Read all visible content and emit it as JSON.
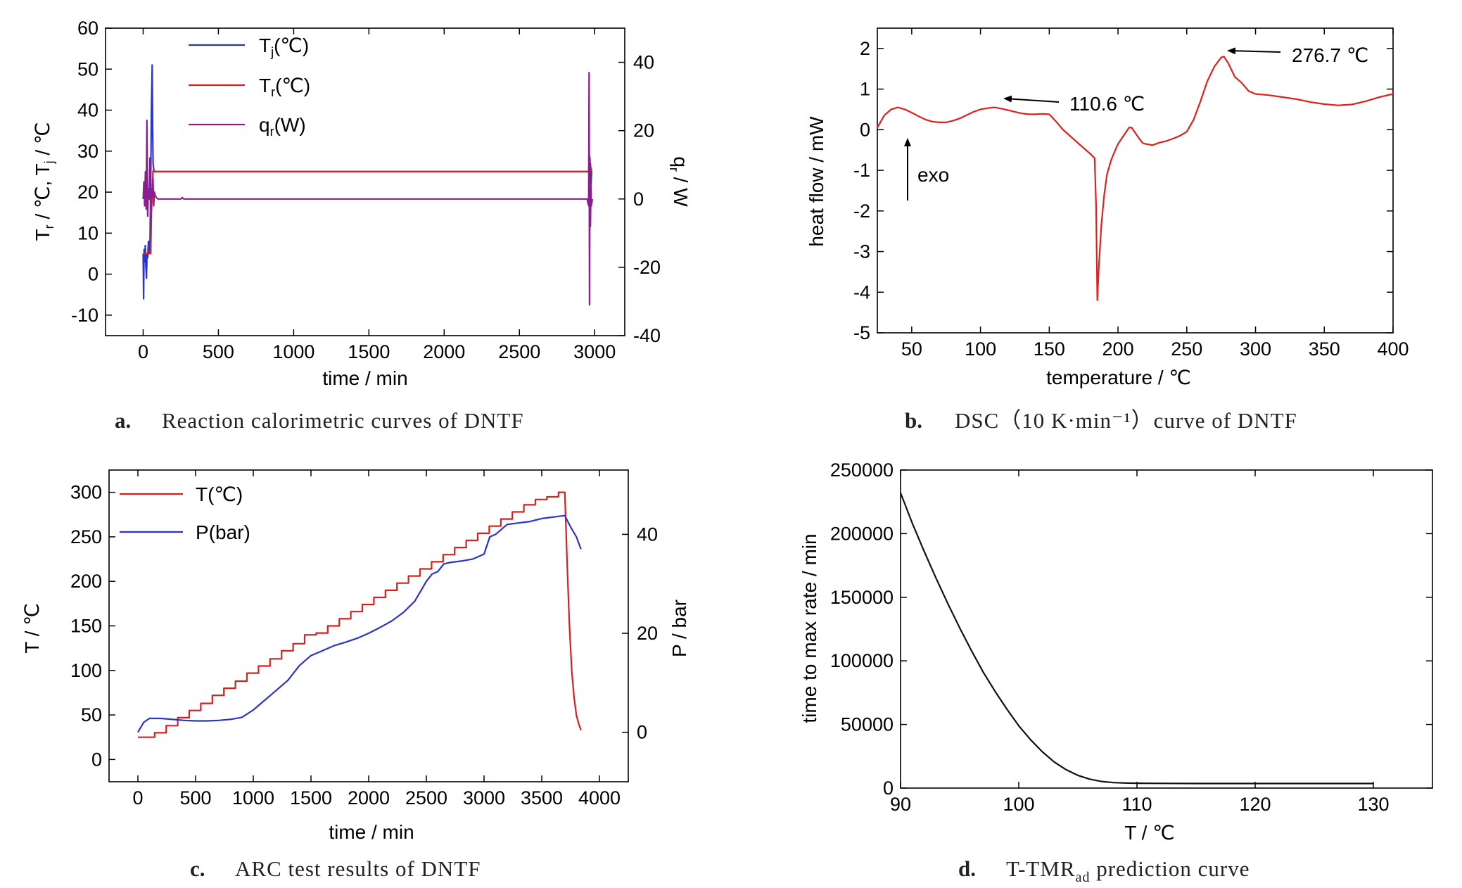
{
  "chart_data": [
    {
      "type": "line",
      "caption_letter": "a.",
      "caption": "Reaction calorimetric curves of DNTF",
      "xlabel": "time / min",
      "ylabel": "T_r / ℃, T_j / ℃",
      "ylabel2": "q_r / W",
      "xlim": [
        -250,
        3200
      ],
      "ylim": [
        -15,
        60
      ],
      "ylim2": [
        -40,
        50
      ],
      "xticks": [
        "0",
        "500",
        "1000",
        "1500",
        "2000",
        "2500",
        "3000"
      ],
      "yticks": [
        "-10",
        "0",
        "10",
        "20",
        "30",
        "40",
        "50",
        "60"
      ],
      "yticks2": [
        "-40",
        "-20",
        "0",
        "20",
        "40"
      ],
      "legend_position": "upper-left",
      "series": [
        {
          "name": "Tj(℃)",
          "color": "#2b34c8",
          "x": [
            0,
            3,
            6,
            10,
            14,
            18,
            22,
            26,
            30,
            35,
            40,
            45,
            50,
            55,
            60,
            63,
            66,
            70,
            75,
            80,
            100,
            500,
            1000,
            1500,
            2000,
            2500,
            2960,
            2965,
            2968,
            2972,
            2976,
            2980
          ],
          "y": [
            5,
            -6,
            6,
            3,
            7,
            2,
            -1,
            5,
            4,
            8,
            5,
            6,
            22,
            40,
            51,
            35,
            27,
            25.5,
            25,
            25,
            25,
            25,
            25,
            25,
            25,
            25,
            25,
            29,
            20,
            27,
            22,
            25
          ]
        },
        {
          "name": "Tr(℃)",
          "color": "#d62020",
          "x": [
            0,
            10,
            20,
            30,
            40,
            50,
            55,
            60,
            65,
            70,
            75,
            80,
            500,
            1000,
            1500,
            2000,
            2500,
            2960,
            2965,
            2970,
            2975,
            2980
          ],
          "y": [
            5,
            5,
            5,
            5,
            5.5,
            5,
            15,
            20,
            25,
            25.5,
            25,
            25,
            25,
            25,
            25,
            25,
            25,
            25,
            27,
            24,
            26,
            25
          ]
        },
        {
          "name": "qr(W)",
          "color": "#8a1e8e",
          "x": [
            0,
            5,
            10,
            15,
            20,
            25,
            30,
            35,
            40,
            45,
            50,
            55,
            60,
            65,
            70,
            75,
            80,
            90,
            100,
            150,
            250,
            260,
            270,
            500,
            1000,
            1500,
            2000,
            2500,
            2950,
            2960,
            2963,
            2966,
            2969,
            2972,
            2975,
            2978,
            2985
          ],
          "y": [
            0,
            5,
            -2,
            8,
            -3,
            23,
            -5,
            3,
            0,
            12,
            -6,
            3,
            1,
            6,
            -2,
            2,
            1,
            0.3,
            0,
            0,
            0,
            0.4,
            0,
            0,
            0,
            0,
            0,
            0,
            0,
            -2,
            37,
            -31,
            12,
            -8,
            4,
            -2,
            0
          ]
        }
      ]
    },
    {
      "type": "line",
      "caption_letter": "b.",
      "caption": "DSC（10 K·min⁻¹）curve of DNTF",
      "xlabel": "temperature / ℃",
      "ylabel": "heat flow / mW",
      "xlim": [
        25,
        400
      ],
      "ylim": [
        -5,
        2.5
      ],
      "xticks": [
        "50",
        "100",
        "150",
        "200",
        "250",
        "300",
        "350",
        "400"
      ],
      "yticks": [
        "-5",
        "-4",
        "-3",
        "-2",
        "-1",
        "0",
        "1",
        "2"
      ],
      "annotations": [
        "110.6 ℃",
        "276.7 ℃",
        "exo"
      ],
      "series": [
        {
          "name": "",
          "color": "#e0201e",
          "x": [
            25,
            30,
            35,
            40,
            45,
            50,
            55,
            60,
            65,
            70,
            75,
            80,
            85,
            90,
            95,
            100,
            105,
            110,
            115,
            120,
            125,
            130,
            135,
            140,
            145,
            150,
            155,
            160,
            165,
            170,
            175,
            180,
            183,
            184,
            185,
            186,
            188,
            190,
            192,
            195,
            198,
            200,
            203,
            205,
            208,
            210,
            212,
            215,
            218,
            220,
            225,
            230,
            235,
            240,
            245,
            250,
            255,
            260,
            265,
            270,
            275,
            277,
            280,
            285,
            290,
            295,
            300,
            310,
            320,
            330,
            340,
            350,
            360,
            370,
            380,
            390,
            400
          ],
          "y": [
            0.05,
            0.35,
            0.5,
            0.55,
            0.5,
            0.42,
            0.33,
            0.25,
            0.2,
            0.18,
            0.18,
            0.22,
            0.28,
            0.36,
            0.44,
            0.5,
            0.53,
            0.55,
            0.52,
            0.48,
            0.44,
            0.4,
            0.38,
            0.38,
            0.39,
            0.38,
            0.2,
            0.0,
            -0.15,
            -0.3,
            -0.45,
            -0.6,
            -0.7,
            -1.8,
            -4.2,
            -3.4,
            -2.3,
            -1.6,
            -1.1,
            -0.75,
            -0.5,
            -0.35,
            -0.2,
            -0.1,
            0.05,
            0.05,
            -0.05,
            -0.2,
            -0.33,
            -0.35,
            -0.38,
            -0.32,
            -0.28,
            -0.22,
            -0.15,
            -0.05,
            0.25,
            0.7,
            1.2,
            1.55,
            1.78,
            1.8,
            1.65,
            1.3,
            1.15,
            0.95,
            0.88,
            0.85,
            0.8,
            0.75,
            0.68,
            0.63,
            0.6,
            0.62,
            0.7,
            0.8,
            0.88
          ]
        }
      ]
    },
    {
      "type": "line",
      "caption_letter": "c.",
      "caption": "ARC test results of DNTF",
      "xlabel": "time / min",
      "ylabel": "T / ℃",
      "ylabel2": "P / bar",
      "xlim": [
        -250,
        4250
      ],
      "ylim": [
        -25,
        325
      ],
      "ylim2": [
        -10,
        53
      ],
      "xticks": [
        "0",
        "500",
        "1000",
        "1500",
        "2000",
        "2500",
        "3000",
        "3500",
        "4000"
      ],
      "yticks": [
        "0",
        "50",
        "100",
        "150",
        "200",
        "250",
        "300"
      ],
      "yticks2": [
        "0",
        "20",
        "40"
      ],
      "legend_position": "upper-left",
      "series": [
        {
          "name": "T(℃)",
          "color": "#d62020",
          "style": "heat-wait-seek staircase",
          "x": [
            0,
            100,
            200,
            300,
            400,
            500,
            600,
            700,
            800,
            900,
            1000,
            1100,
            1200,
            1300,
            1400,
            1500,
            1600,
            1700,
            1800,
            1900,
            2000,
            2100,
            2200,
            2300,
            2400,
            2500,
            2600,
            2700,
            2800,
            2900,
            3000,
            3100,
            3200,
            3300,
            3400,
            3500,
            3600,
            3700,
            3720,
            3740,
            3760,
            3780,
            3800,
            3820,
            3840
          ],
          "y": [
            25,
            25,
            30,
            38,
            47,
            55,
            63,
            72,
            80,
            88,
            97,
            105,
            113,
            122,
            130,
            140,
            142,
            150,
            158,
            166,
            174,
            182,
            190,
            198,
            206,
            214,
            222,
            230,
            238,
            246,
            254,
            262,
            270,
            278,
            286,
            292,
            295,
            300,
            220,
            150,
            100,
            70,
            50,
            40,
            33
          ]
        },
        {
          "name": "P(bar)",
          "color": "#2b34c8",
          "x": [
            0,
            50,
            100,
            200,
            300,
            400,
            500,
            600,
            700,
            800,
            900,
            1000,
            1100,
            1200,
            1300,
            1400,
            1500,
            1600,
            1700,
            1800,
            1900,
            2000,
            2100,
            2200,
            2300,
            2400,
            2500,
            2550,
            2600,
            2650,
            2700,
            2800,
            2900,
            3000,
            3050,
            3100,
            3200,
            3300,
            3400,
            3500,
            3600,
            3700,
            3750,
            3800,
            3840
          ],
          "y": [
            0,
            2,
            2.8,
            2.8,
            2.6,
            2.4,
            2.3,
            2.3,
            2.4,
            2.6,
            3,
            4.5,
            6.5,
            8.5,
            10.5,
            13.5,
            15.5,
            16.5,
            17.5,
            18.2,
            19,
            20,
            21.2,
            22.5,
            24.2,
            26.5,
            30.5,
            32,
            32.5,
            34,
            34.3,
            34.6,
            35,
            36,
            39.5,
            40,
            42,
            42.3,
            42.6,
            43.2,
            43.5,
            43.8,
            41.5,
            39.5,
            37
          ]
        }
      ]
    },
    {
      "type": "line",
      "caption_letter": "d.",
      "caption": "T-TMRad prediction curve",
      "xlabel": "T / ℃",
      "ylabel": "time to max rate / min",
      "xlim": [
        90,
        135
      ],
      "ylim": [
        0,
        250000
      ],
      "xticks": [
        "90",
        "100",
        "110",
        "120",
        "130"
      ],
      "yticks": [
        "0",
        "50000",
        "100000",
        "150000",
        "200000",
        "250000"
      ],
      "series": [
        {
          "name": "",
          "color": "#111111",
          "x": [
            90,
            91,
            92,
            93,
            94,
            95,
            96,
            97,
            98,
            99,
            100,
            101,
            102,
            103,
            104,
            105,
            106,
            107,
            108,
            109,
            110,
            112,
            115,
            120,
            125,
            130
          ],
          "y": [
            232000,
            208000,
            186000,
            165000,
            145000,
            126000,
            108000,
            91000,
            76000,
            62000,
            49000,
            38000,
            28500,
            20500,
            14500,
            10000,
            7000,
            5200,
            4300,
            4000,
            3800,
            3700,
            3600,
            3600,
            3600,
            3600
          ]
        }
      ]
    }
  ]
}
